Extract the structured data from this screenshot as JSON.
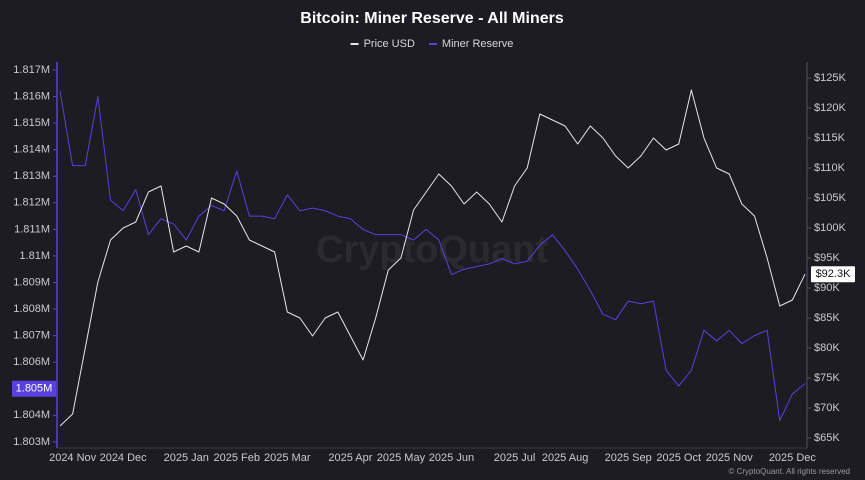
{
  "chart_data": {
    "type": "line",
    "title": "Bitcoin: Miner Reserve - All Miners",
    "watermark": "CryptoQuant",
    "footer": "© CryptoQuant. All rights reserved",
    "categories": [
      null,
      "2024 Nov",
      null,
      null,
      null,
      "2024 Dec",
      null,
      null,
      null,
      null,
      "2025 Jan",
      null,
      null,
      null,
      "2025 Feb",
      null,
      null,
      null,
      "2025 Mar",
      null,
      null,
      null,
      null,
      "2025 Apr",
      null,
      null,
      null,
      "2025 May",
      null,
      null,
      null,
      "2025 Jun",
      null,
      null,
      null,
      null,
      "2025 Jul",
      null,
      null,
      null,
      "2025 Aug",
      null,
      null,
      null,
      null,
      "2025 Sep",
      null,
      null,
      null,
      "2025 Oct",
      null,
      null,
      null,
      "2025 Nov",
      null,
      null,
      null,
      null,
      "2025 Dec",
      null
    ],
    "series": [
      {
        "name": "Price USD",
        "color": "#e6e6ea",
        "axis": "y2",
        "values": [
          67000,
          69000,
          80000,
          91000,
          98000,
          100000,
          101000,
          106000,
          107000,
          96000,
          97000,
          96000,
          105000,
          104000,
          102000,
          98000,
          97000,
          96000,
          86000,
          85000,
          82000,
          85000,
          86000,
          82000,
          78000,
          85000,
          93000,
          95000,
          103000,
          106000,
          109000,
          107000,
          104000,
          106000,
          104000,
          101000,
          107000,
          110000,
          119000,
          118000,
          117000,
          114000,
          117000,
          115000,
          112000,
          110000,
          112000,
          115000,
          113000,
          114000,
          123000,
          115000,
          110000,
          109000,
          104000,
          102000,
          95000,
          87000,
          88000,
          92300
        ]
      },
      {
        "name": "Miner Reserve",
        "color": "#5a3fe0",
        "axis": "y",
        "values": [
          1816200,
          1813400,
          1813400,
          1816000,
          1812100,
          1811700,
          1812500,
          1810800,
          1811400,
          1811200,
          1810600,
          1811500,
          1811900,
          1811700,
          1813200,
          1811500,
          1811500,
          1811400,
          1812300,
          1811700,
          1811800,
          1811700,
          1811500,
          1811400,
          1811000,
          1810800,
          1810800,
          1810800,
          1810600,
          1811000,
          1810600,
          1809300,
          1809500,
          1809600,
          1809700,
          1809900,
          1809700,
          1809800,
          1810400,
          1810800,
          1810200,
          1809500,
          1808700,
          1807800,
          1807600,
          1808300,
          1808200,
          1808300,
          1805700,
          1805100,
          1805700,
          1807200,
          1806800,
          1807200,
          1806700,
          1807000,
          1807200,
          1803800,
          1804800,
          1805200
        ]
      }
    ],
    "ylim": [
      1802770,
      1817300
    ],
    "yticks": [
      {
        "value": 1803000,
        "label": "1.803M"
      },
      {
        "value": 1804000,
        "label": "1.804M"
      },
      {
        "value": 1805000,
        "label": "1.805M"
      },
      {
        "value": 1806000,
        "label": "1.806M"
      },
      {
        "value": 1807000,
        "label": "1.807M"
      },
      {
        "value": 1808000,
        "label": "1.808M"
      },
      {
        "value": 1809000,
        "label": "1.809M"
      },
      {
        "value": 1810000,
        "label": "1.81M"
      },
      {
        "value": 1811000,
        "label": "1.811M"
      },
      {
        "value": 1812000,
        "label": "1.812M"
      },
      {
        "value": 1813000,
        "label": "1.813M"
      },
      {
        "value": 1814000,
        "label": "1.814M"
      },
      {
        "value": 1815000,
        "label": "1.815M"
      },
      {
        "value": 1816000,
        "label": "1.816M"
      },
      {
        "value": 1817000,
        "label": "1.817M"
      }
    ],
    "y2lim": [
      63330,
      127670
    ],
    "y2ticks": [
      {
        "value": 65000,
        "label": "$65K"
      },
      {
        "value": 70000,
        "label": "$70K"
      },
      {
        "value": 75000,
        "label": "$75K"
      },
      {
        "value": 80000,
        "label": "$80K"
      },
      {
        "value": 85000,
        "label": "$85K"
      },
      {
        "value": 90000,
        "label": "$90K"
      },
      {
        "value": 95000,
        "label": "$95K"
      },
      {
        "value": 100000,
        "label": "$100K"
      },
      {
        "value": 105000,
        "label": "$105K"
      },
      {
        "value": 110000,
        "label": "$110K"
      },
      {
        "value": 115000,
        "label": "$115K"
      },
      {
        "value": 120000,
        "label": "$120K"
      },
      {
        "value": 125000,
        "label": "$125K"
      }
    ],
    "annotations": [
      {
        "text": "1.805M",
        "value": 1805000,
        "axis": "y"
      },
      {
        "text": "$92.3K",
        "value": 92300,
        "axis": "y2"
      }
    ],
    "grid": false,
    "legend": "top"
  }
}
